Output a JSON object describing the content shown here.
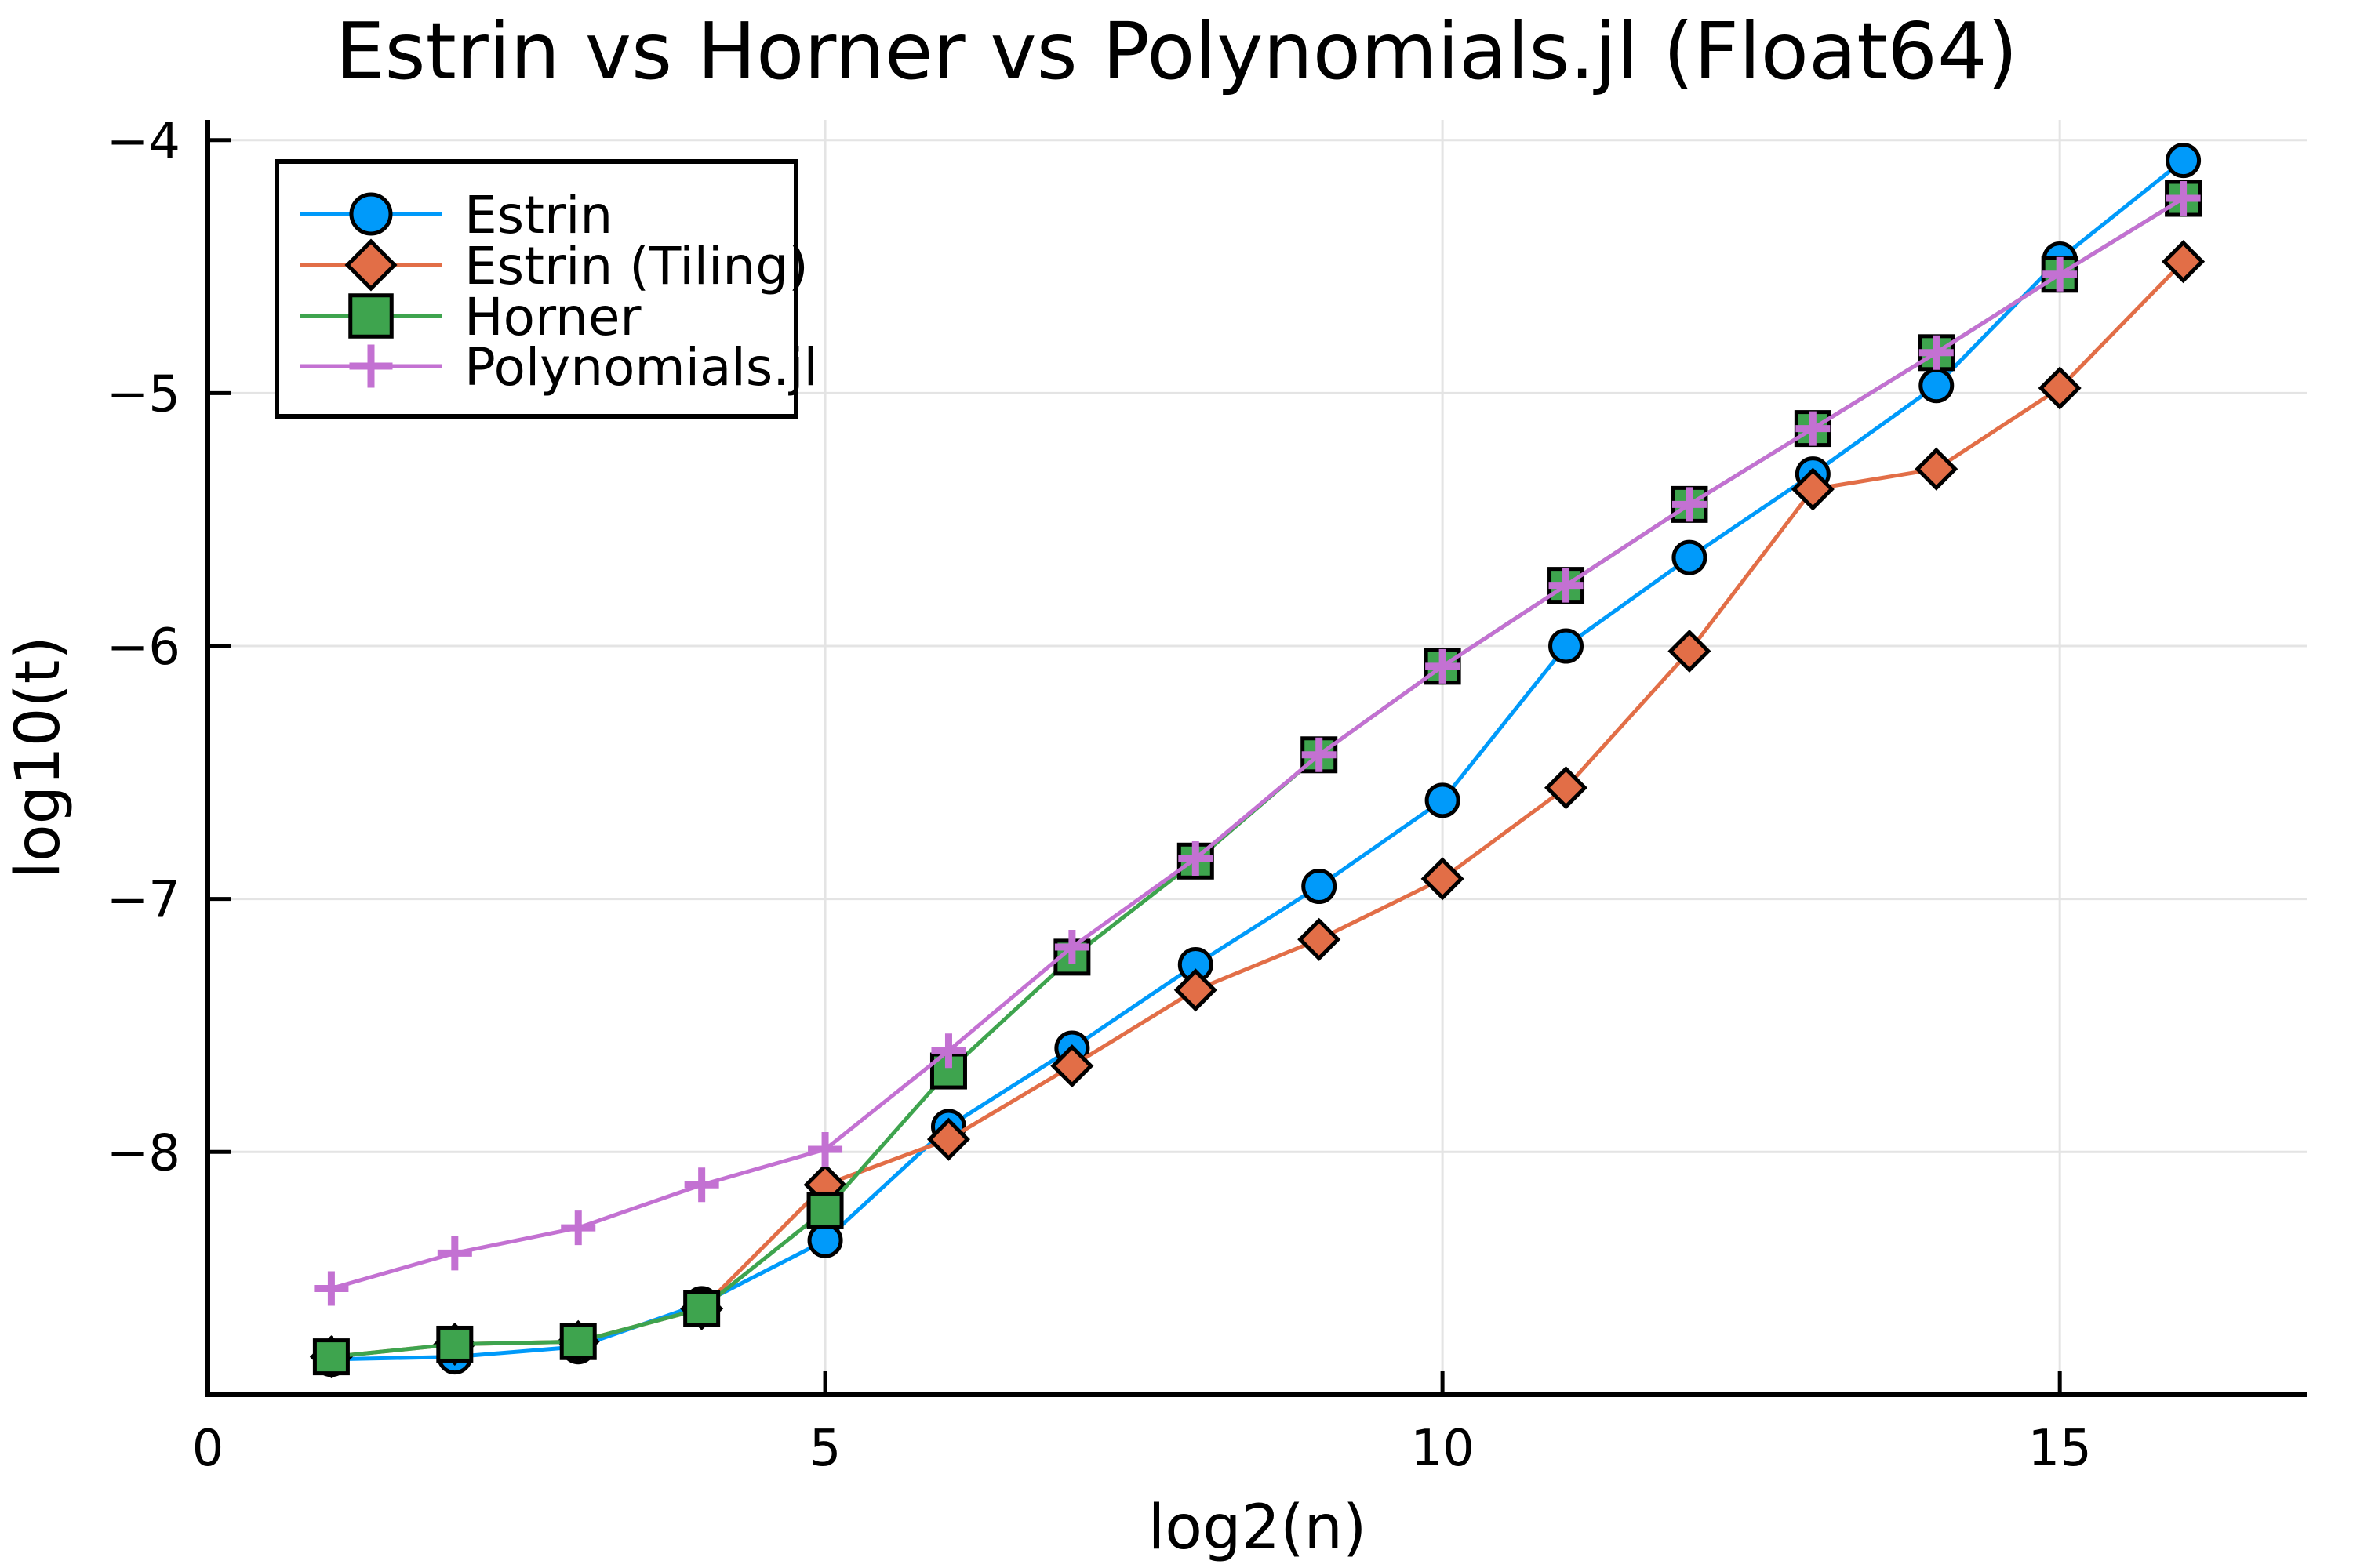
{
  "figure": {
    "title": "Estrin vs Horner vs Polynomials.jl (Float64)",
    "xlabel": "log2(n)",
    "ylabel": "log10(t)"
  },
  "chart_data": {
    "type": "line",
    "title": "Estrin vs Horner vs Polynomials.jl (Float64)",
    "xlabel": "log2(n)",
    "ylabel": "log10(t)",
    "grid": true,
    "legend_position": "top-left",
    "xlim": [
      0,
      17
    ],
    "ylim": [
      -8.96,
      -3.92
    ],
    "xticks": [
      0,
      5,
      10,
      15
    ],
    "xtick_labels": [
      "0",
      "5",
      "10",
      "15"
    ],
    "yticks": [
      -4,
      -5,
      -6,
      -7,
      -8
    ],
    "ytick_labels": [
      "−4",
      "−5",
      "−6",
      "−7",
      "−8"
    ],
    "x": [
      1,
      2,
      3,
      4,
      5,
      6,
      7,
      8,
      9,
      10,
      11,
      12,
      13,
      14,
      15,
      16
    ],
    "series": [
      {
        "name": "Estrin",
        "marker": "circle",
        "color": "#009AFA",
        "values": [
          -8.82,
          -8.81,
          -8.77,
          -8.6,
          -8.35,
          -7.9,
          -7.59,
          -7.26,
          -6.95,
          -6.61,
          -6.0,
          -5.65,
          -5.32,
          -4.97,
          -4.47,
          -4.08
        ]
      },
      {
        "name": "Estrin (Tiling)",
        "marker": "diamond",
        "color": "#E26E47",
        "values": [
          -8.81,
          -8.76,
          -8.75,
          -8.62,
          -8.13,
          -7.95,
          -7.66,
          -7.36,
          -7.16,
          -6.92,
          -6.56,
          -6.02,
          -5.38,
          -5.3,
          -4.98,
          -4.48
        ]
      },
      {
        "name": "Horner",
        "marker": "square",
        "color": "#3EA44E",
        "values": [
          -8.81,
          -8.76,
          -8.75,
          -8.62,
          -8.23,
          -7.68,
          -7.23,
          -6.85,
          -6.43,
          -6.08,
          -5.76,
          -5.44,
          -5.14,
          -4.84,
          -4.53,
          -4.23
        ]
      },
      {
        "name": "Polynomials.jl",
        "marker": "plus",
        "color": "#C371D2",
        "values": [
          -8.54,
          -8.4,
          -8.3,
          -8.13,
          -7.99,
          -7.6,
          -7.19,
          -6.84,
          -6.43,
          -6.08,
          -5.76,
          -5.44,
          -5.14,
          -4.84,
          -4.53,
          -4.23
        ]
      }
    ],
    "style": {
      "grid_color": "#E4E4E4",
      "axis_color": "#000000",
      "marker_stroke": "#000000",
      "background": "#FFFFFF"
    }
  }
}
